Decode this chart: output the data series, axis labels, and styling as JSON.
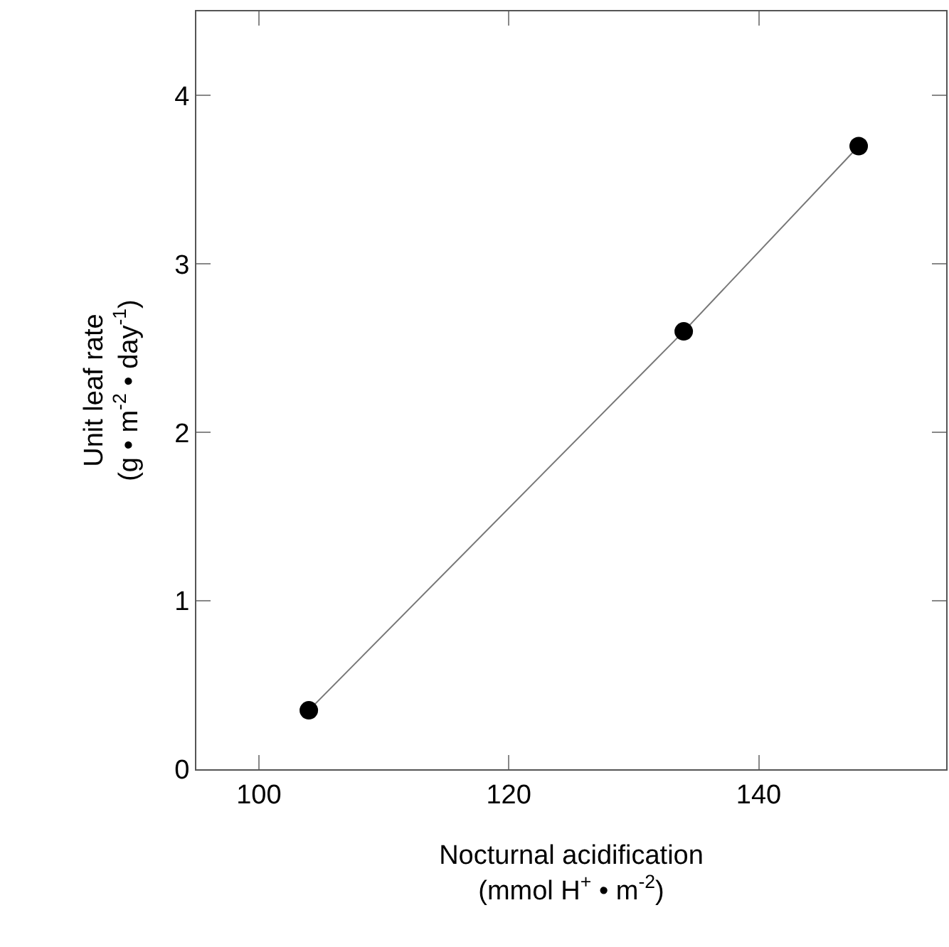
{
  "chart_data": {
    "type": "line",
    "xlabel": "Nocturnal acidification\n(mmol H$^{+}$ • m$^{-2}$)",
    "ylabel": "Unit leaf rate\n(g • m$^{-2}$ • day$^{-1}$)",
    "x": [
      104,
      134,
      148
    ],
    "series": [
      {
        "color": "#000000",
        "values": [
          0.35,
          2.6,
          3.7
        ]
      }
    ],
    "xlim": [
      95,
      155
    ],
    "xticks": [
      100,
      120,
      140
    ],
    "ylim": [
      0,
      4.5
    ],
    "yticks": [
      0,
      1,
      2,
      3,
      4
    ],
    "marker": "circle",
    "line_style": "solid"
  }
}
